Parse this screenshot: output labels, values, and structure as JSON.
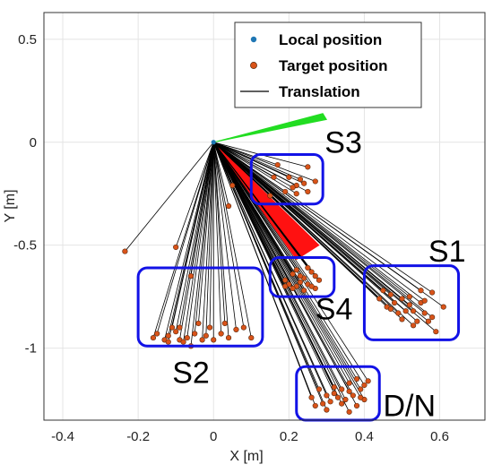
{
  "chart_data": {
    "type": "scatter",
    "xlabel": "X [m]",
    "ylabel": "Y [m]",
    "xlim": [
      -0.45,
      0.72
    ],
    "ylim": [
      -1.35,
      0.63
    ],
    "xticks": [
      "-0.4",
      "-0.2",
      "0",
      "0.2",
      "0.4",
      "0.6"
    ],
    "xtick_values": [
      -0.4,
      -0.2,
      0,
      0.2,
      0.4,
      0.6
    ],
    "yticks": [
      "0.5",
      "0",
      "-0.5",
      "-1"
    ],
    "ytick_values": [
      0.5,
      0,
      -0.5,
      -1
    ],
    "grid": true,
    "legend_position": "top-right",
    "legend": [
      {
        "label": "Local position",
        "marker": "dot",
        "color": "#1f77b4"
      },
      {
        "label": "Target position",
        "marker": "dot",
        "color": "#d95319"
      },
      {
        "label": "Translation",
        "marker": "line",
        "color": "#000000"
      }
    ],
    "local_position": [
      0,
      0
    ],
    "target_groups": [
      {
        "label": "S3",
        "box": {
          "x": [
            0.1,
            0.29
          ],
          "y": [
            -0.3,
            -0.06
          ]
        },
        "points": [
          [
            0.25,
            -0.12
          ],
          [
            0.2,
            -0.17
          ],
          [
            0.23,
            -0.18
          ],
          [
            0.24,
            -0.2
          ],
          [
            0.22,
            -0.21
          ],
          [
            0.27,
            -0.19
          ],
          [
            0.21,
            -0.22
          ],
          [
            0.25,
            -0.24
          ],
          [
            0.16,
            -0.17
          ],
          [
            0.19,
            -0.24
          ],
          [
            0.15,
            -0.26
          ],
          [
            0.22,
            -0.25
          ]
        ]
      },
      {
        "label": "S1",
        "box": {
          "x": [
            0.4,
            0.65
          ],
          "y": [
            -0.96,
            -0.6
          ]
        },
        "points": [
          [
            0.45,
            -0.72
          ],
          [
            0.47,
            -0.74
          ],
          [
            0.5,
            -0.76
          ],
          [
            0.52,
            -0.75
          ],
          [
            0.55,
            -0.78
          ],
          [
            0.58,
            -0.73
          ],
          [
            0.61,
            -0.8
          ],
          [
            0.48,
            -0.78
          ],
          [
            0.53,
            -0.82
          ],
          [
            0.56,
            -0.83
          ],
          [
            0.5,
            -0.86
          ],
          [
            0.54,
            -0.87
          ],
          [
            0.57,
            -0.87
          ],
          [
            0.59,
            -0.92
          ],
          [
            0.46,
            -0.8
          ],
          [
            0.52,
            -0.79
          ],
          [
            0.49,
            -0.83
          ],
          [
            0.55,
            -0.72
          ],
          [
            0.51,
            -0.82
          ],
          [
            0.58,
            -0.85
          ],
          [
            0.44,
            -0.76
          ],
          [
            0.53,
            -0.89
          ],
          [
            0.56,
            -0.77
          ],
          [
            0.47,
            -0.81
          ]
        ]
      },
      {
        "label": "S4",
        "box": {
          "x": [
            0.15,
            0.32
          ],
          "y": [
            -0.75,
            -0.56
          ]
        },
        "points": [
          [
            0.19,
            -0.67
          ],
          [
            0.21,
            -0.64
          ],
          [
            0.22,
            -0.7
          ],
          [
            0.24,
            -0.66
          ],
          [
            0.25,
            -0.69
          ],
          [
            0.27,
            -0.71
          ],
          [
            0.28,
            -0.67
          ],
          [
            0.26,
            -0.63
          ],
          [
            0.23,
            -0.65
          ],
          [
            0.2,
            -0.69
          ],
          [
            0.24,
            -0.72
          ],
          [
            0.22,
            -0.62
          ],
          [
            0.26,
            -0.7
          ],
          [
            0.21,
            -0.71
          ],
          [
            0.27,
            -0.65
          ],
          [
            0.23,
            -0.68
          ],
          [
            0.25,
            -0.61
          ],
          [
            0.19,
            -0.7
          ]
        ]
      },
      {
        "label": "S2",
        "box": {
          "x": [
            -0.2,
            0.13
          ],
          "y": [
            -0.99,
            -0.61
          ]
        },
        "points": [
          [
            -0.15,
            -0.93
          ],
          [
            -0.12,
            -0.94
          ],
          [
            -0.1,
            -0.92
          ],
          [
            -0.09,
            -0.96
          ],
          [
            -0.07,
            -0.95
          ],
          [
            -0.05,
            -0.93
          ],
          [
            -0.03,
            -0.96
          ],
          [
            -0.01,
            -0.9
          ],
          [
            0.02,
            -0.93
          ],
          [
            0.04,
            -0.95
          ],
          [
            0.08,
            -0.9
          ],
          [
            0.1,
            -0.95
          ],
          [
            -0.13,
            -0.96
          ],
          [
            -0.08,
            -0.97
          ],
          [
            -0.06,
            -0.99
          ],
          [
            -0.04,
            -0.88
          ],
          [
            -0.11,
            -0.9
          ],
          [
            0.0,
            -0.96
          ],
          [
            0.06,
            -0.91
          ],
          [
            -0.16,
            -0.95
          ],
          [
            -0.09,
            -0.9
          ],
          [
            -0.12,
            -0.97
          ],
          [
            0.03,
            -0.88
          ],
          [
            -0.02,
            -0.94
          ]
        ]
      },
      {
        "label": "D/N",
        "box": {
          "x": [
            0.22,
            0.44
          ],
          "y": [
            -1.35,
            -1.09
          ]
        },
        "points": [
          [
            0.26,
            -1.24
          ],
          [
            0.28,
            -1.2
          ],
          [
            0.3,
            -1.23
          ],
          [
            0.32,
            -1.19
          ],
          [
            0.34,
            -1.2
          ],
          [
            0.36,
            -1.17
          ],
          [
            0.38,
            -1.15
          ],
          [
            0.4,
            -1.18
          ],
          [
            0.31,
            -1.26
          ],
          [
            0.33,
            -1.24
          ],
          [
            0.35,
            -1.25
          ],
          [
            0.37,
            -1.23
          ],
          [
            0.39,
            -1.2
          ],
          [
            0.41,
            -1.16
          ],
          [
            0.27,
            -1.28
          ],
          [
            0.29,
            -1.27
          ],
          [
            0.3,
            -1.3
          ],
          [
            0.34,
            -1.27
          ],
          [
            0.36,
            -1.31
          ],
          [
            0.38,
            -1.28
          ],
          [
            0.4,
            -1.25
          ],
          [
            0.32,
            -1.22
          ],
          [
            0.36,
            -1.21
          ],
          [
            0.39,
            -1.24
          ]
        ]
      }
    ],
    "outlier_points": [
      [
        -0.235,
        -0.53
      ],
      [
        -0.1,
        -0.51
      ],
      [
        0.04,
        -0.31
      ],
      [
        0.05,
        -0.21
      ],
      [
        0.17,
        -0.11
      ],
      [
        -0.06,
        -0.65
      ]
    ],
    "cones": [
      {
        "color": "#22dd22",
        "polygon": [
          [
            0,
            0
          ],
          [
            0.29,
            0.14
          ],
          [
            0.3,
            0.11
          ]
        ]
      },
      {
        "color": "#ff1111",
        "polygon": [
          [
            0,
            0
          ],
          [
            0.28,
            -0.5
          ],
          [
            0.22,
            -0.57
          ]
        ]
      }
    ],
    "box_color": "#1212e6"
  }
}
